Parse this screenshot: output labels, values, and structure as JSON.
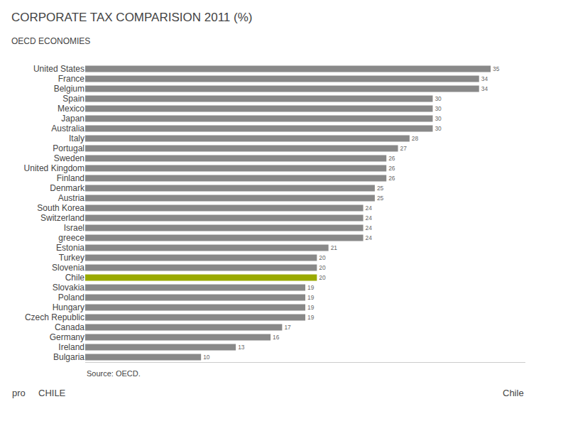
{
  "chart_data": {
    "type": "bar",
    "orientation": "horizontal",
    "title": "CORPORATE TAX COMPARISION 2011 (%)",
    "subtitle": "OECD ECONOMIES",
    "categories": [
      "United States",
      "France",
      "Belgium",
      "Spain",
      "Mexico",
      "Japan",
      "Australia",
      "Italy",
      "Portugal",
      "Sweden",
      "United Kingdom",
      "Finland",
      "Denmark",
      "Austria",
      "South Korea",
      "Switzerland",
      "Israel",
      "greece",
      "Estonia",
      "Turkey",
      "Slovenia",
      "Chile",
      "Slovakia",
      "Poland",
      "Hungary",
      "Czech Republic",
      "Canada",
      "Germany",
      "Ireland",
      "Bulgaria"
    ],
    "values": [
      35,
      34,
      34,
      30,
      30,
      30,
      30,
      28,
      27,
      26,
      26,
      26,
      25,
      25,
      24,
      24,
      24,
      24,
      21,
      20,
      20,
      20,
      19,
      19,
      19,
      19,
      17,
      16,
      13,
      10
    ],
    "colors": [
      "#898989",
      "#898989",
      "#898989",
      "#898989",
      "#898989",
      "#898989",
      "#898989",
      "#898989",
      "#898989",
      "#898989",
      "#898989",
      "#898989",
      "#898989",
      "#898989",
      "#898989",
      "#898989",
      "#898989",
      "#898989",
      "#898989",
      "#898989",
      "#898989",
      "#9aaa00",
      "#898989",
      "#898989",
      "#898989",
      "#898989",
      "#898989",
      "#898989",
      "#898989",
      "#898989"
    ],
    "xlim": [
      0,
      38
    ],
    "data_labels": true,
    "tick_labels": "y",
    "grid": false,
    "annotations": [
      "Source: OECD.",
      "pro",
      "CHILE",
      "Chile"
    ]
  }
}
